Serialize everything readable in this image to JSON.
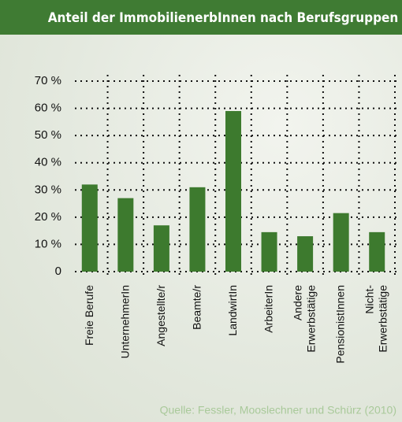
{
  "chart_data": {
    "type": "bar",
    "title": "Anteil der ImmobilienerbInnen nach Berufsgruppen",
    "categories": [
      "Freie Berufe",
      "UnternehmerIn",
      "Angestellte/r",
      "Beamte/r",
      "LandwirtIn",
      "ArbeiterIn",
      "Andere\nErwerbstätige",
      "PensionistInnen",
      "Nicht-\nErwerbstätige"
    ],
    "values": [
      32,
      27,
      17,
      31,
      59,
      14.5,
      13,
      21.5,
      14.5
    ],
    "color": "#3d7a2e",
    "ylim": [
      0,
      70
    ],
    "yticks": [
      0,
      {
        "value": 10,
        "label": "10 %"
      },
      {
        "value": 20,
        "label": "20 %"
      },
      {
        "value": 30,
        "label": "30 %"
      },
      {
        "value": 40,
        "label": "40 %"
      },
      {
        "value": 50,
        "label": "50 %"
      },
      {
        "value": 60,
        "label": "60 %"
      },
      {
        "value": 70,
        "label": "70 %"
      }
    ],
    "grid": true,
    "source": "Quelle: Fessler, Mooslechner und Schürz (2010)"
  }
}
